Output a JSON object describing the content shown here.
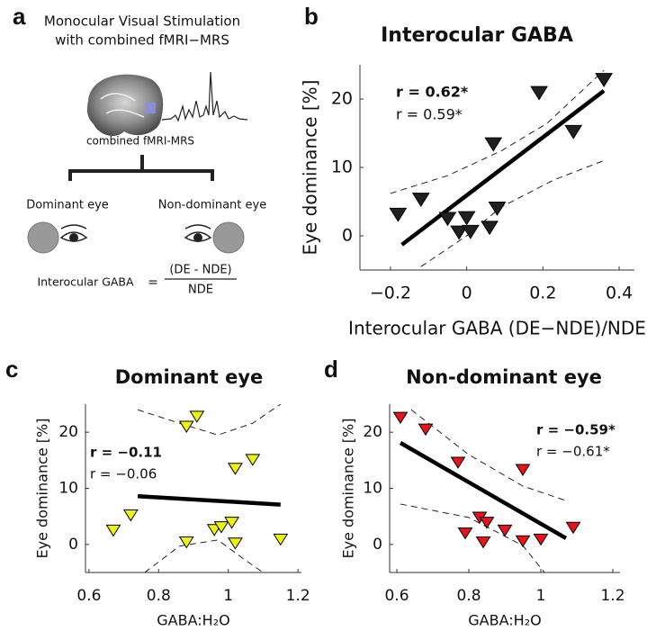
{
  "panel_labels": [
    "a",
    "b",
    "c",
    "d"
  ],
  "diagram": {
    "title_lines": [
      "Monocular Visual Stimulation",
      "with combined fMRI−MRS"
    ],
    "image_caption": "combined fMRI-MRS",
    "left_eye": "Dominant eye",
    "right_eye": "Non-dominant eye",
    "formula_left": "Interocular GABA",
    "formula_equals": "=",
    "numerator": "(DE - NDE)",
    "denominator": "NDE"
  },
  "chart_data": [
    {
      "type": "scatter",
      "title": "Interocular GABA",
      "xlabel": "Interocular GABA (DE−NDE)/NDE",
      "ylabel": "Eye dominance [%]",
      "xlim": [
        -0.28,
        0.44
      ],
      "ylim": [
        -5,
        25
      ],
      "xticks": [
        {
          "value": -0.2,
          "label": "−0.2"
        },
        0,
        0.2,
        0.4
      ],
      "yticks": [
        0,
        10,
        20
      ],
      "color": "#231f20",
      "x": [
        -0.18,
        -0.12,
        -0.05,
        -0.02,
        0.0,
        0.01,
        0.06,
        0.07,
        0.08,
        0.19,
        0.28,
        0.36
      ],
      "values": [
        3.2,
        5.4,
        2.6,
        0.6,
        2.7,
        0.7,
        1.3,
        13.5,
        4.1,
        21,
        15.3,
        22.9
      ],
      "fit": {
        "x": [
          -0.17,
          0.36
        ],
        "y": [
          -1.3,
          21.2
        ]
      },
      "ci_upper": {
        "x": [
          -0.2,
          -0.05,
          0.09,
          0.21,
          0.36
        ],
        "y": [
          6.2,
          8.8,
          12.4,
          16.4,
          24.2
        ]
      },
      "ci_lower": {
        "x": [
          -0.12,
          0,
          0.09,
          0.23,
          0.36
        ],
        "y": [
          -4.5,
          0,
          4.2,
          8.2,
          11
        ]
      },
      "annotations": [
        {
          "text": "r = 0.62*",
          "bold": true
        },
        {
          "text": "r = 0.59*",
          "bold": false
        }
      ]
    },
    {
      "type": "scatter",
      "title": "Dominant eye",
      "xlabel": "GABA:H₂O",
      "ylabel": "Eye dominance [%]",
      "xlim": [
        0.59,
        1.21
      ],
      "ylim": [
        -5,
        25
      ],
      "xticks": [
        0.6,
        0.8,
        1,
        1.2
      ],
      "yticks": [
        0,
        10,
        20
      ],
      "color": "#eef211",
      "x": [
        0.67,
        0.72,
        0.88,
        0.91,
        0.88,
        0.96,
        0.98,
        1.01,
        1.02,
        1.02,
        1.07,
        1.15
      ],
      "values": [
        2.6,
        5.3,
        21.1,
        22.9,
        0.5,
        2.7,
        3.2,
        4.0,
        0.3,
        13.6,
        15.2,
        1.0
      ],
      "fit": {
        "x": [
          0.74,
          1.15
        ],
        "y": [
          8.6,
          7.1
        ]
      },
      "ci_upper": {
        "x": [
          0.74,
          0.86,
          0.97,
          1.07,
          1.15
        ],
        "y": [
          24,
          21.6,
          19.5,
          21.6,
          25
        ]
      },
      "ci_lower": {
        "x": [
          0.76,
          0.86,
          0.97,
          1.04,
          1.1
        ],
        "y": [
          -5,
          -0.3,
          0.8,
          -2.4,
          -5
        ]
      },
      "annotations": [
        {
          "text": "r = −0.11",
          "bold": true
        },
        {
          "text": "r = −0.06",
          "bold": false
        }
      ]
    },
    {
      "type": "scatter",
      "title": "Non-dominant eye",
      "xlabel": "GABA:H₂O",
      "ylabel": "Eye dominance [%]",
      "xlim": [
        0.58,
        1.22
      ],
      "ylim": [
        -5,
        25
      ],
      "xticks": [
        0.6,
        0.8,
        1,
        1.2
      ],
      "yticks": [
        0,
        10,
        20
      ],
      "color": "#e8141b",
      "x": [
        0.61,
        0.68,
        0.77,
        0.95,
        0.79,
        0.83,
        0.85,
        0.84,
        0.9,
        0.95,
        1.0,
        1.09
      ],
      "values": [
        22.7,
        20.6,
        14.7,
        13.4,
        2.1,
        4.9,
        4.0,
        0.5,
        2.6,
        0.7,
        1.0,
        3.1
      ],
      "fit": {
        "x": [
          0.61,
          1.07
        ],
        "y": [
          18.1,
          1.1
        ]
      },
      "ci_upper": {
        "x": [
          0.64,
          0.8,
          0.95,
          1.07
        ],
        "y": [
          24,
          16,
          10.4,
          7.8
        ]
      },
      "ci_lower": {
        "x": [
          0.61,
          0.8,
          0.95,
          1.01
        ],
        "y": [
          7.2,
          4.8,
          -0.2,
          -5
        ]
      },
      "annotations": [
        {
          "text": "r = −0.59*",
          "bold": true
        },
        {
          "text": "r = −0.61*",
          "bold": false
        }
      ]
    }
  ]
}
